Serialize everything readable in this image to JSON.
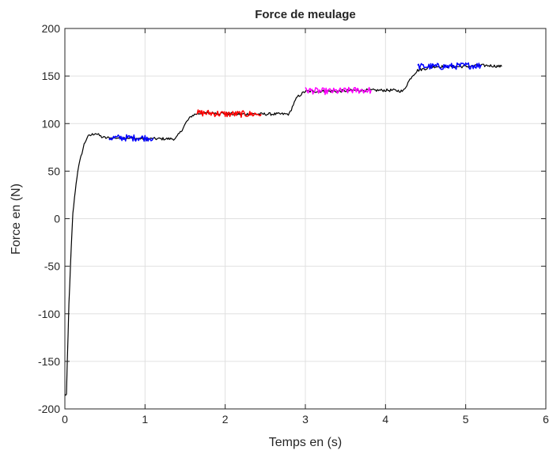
{
  "chart_data": {
    "type": "line",
    "title": "Force de meulage",
    "xlabel": "Temps en (s)",
    "ylabel": "Force en (N)",
    "xlim": [
      0,
      6
    ],
    "ylim": [
      -200,
      200
    ],
    "xticks": [
      0,
      1,
      2,
      3,
      4,
      5,
      6
    ],
    "yticks": [
      -200,
      -150,
      -100,
      -50,
      0,
      50,
      100,
      150,
      200
    ],
    "xtick_labels": [
      "0",
      "1",
      "2",
      "3",
      "4",
      "5",
      "6"
    ],
    "ytick_labels": [
      "-200",
      "-150",
      "-100",
      "-50",
      "0",
      "50",
      "100",
      "150",
      "200"
    ],
    "grid": true,
    "legend": "none",
    "colors": {
      "base": "#000000",
      "segment1": "#0000ff",
      "segment2": "#ff0000",
      "segment3": "#ff00ff",
      "segment4": "#0000ff",
      "grid": "#e0e0e0",
      "axes": "#262626"
    },
    "series": [
      {
        "color": "#000000",
        "noise": 1.5,
        "x": [
          0.0,
          0.02,
          0.05,
          0.08,
          0.1,
          0.13,
          0.16,
          0.2,
          0.24,
          0.28,
          0.33,
          0.38,
          0.42,
          0.46,
          0.5,
          0.6,
          0.8,
          1.0,
          1.2,
          1.38,
          1.45,
          1.52,
          1.58,
          1.63,
          1.7,
          1.9,
          2.1,
          2.3,
          2.5,
          2.7,
          2.8,
          2.85,
          2.9,
          2.95,
          3.0,
          3.2,
          3.4,
          3.6,
          3.8,
          3.9,
          4.1,
          4.22,
          4.28,
          4.33,
          4.4,
          4.6,
          4.8,
          5.0,
          5.2,
          5.3,
          5.45
        ],
        "y": [
          -185,
          -185,
          -90,
          -30,
          5,
          30,
          50,
          65,
          78,
          86,
          88,
          90,
          88,
          86,
          85,
          85,
          85,
          84,
          84,
          84,
          92,
          102,
          108,
          110,
          111,
          111,
          110,
          110,
          110,
          110,
          110,
          120,
          128,
          131,
          134,
          134,
          134,
          135,
          135,
          135,
          135,
          134,
          143,
          150,
          156,
          160,
          160,
          160,
          161,
          161,
          160
        ]
      },
      {
        "color": "#0000ff",
        "noise": 3.5,
        "x": [
          0.55,
          0.7,
          0.85,
          1.0,
          1.1
        ],
        "y": [
          85,
          85,
          85,
          85,
          85
        ]
      },
      {
        "color": "#ff0000",
        "noise": 3.5,
        "x": [
          1.65,
          1.8,
          2.0,
          2.2,
          2.45
        ],
        "y": [
          111,
          111,
          110,
          110,
          110
        ]
      },
      {
        "color": "#ff00ff",
        "noise": 3.5,
        "x": [
          3.0,
          3.2,
          3.4,
          3.6,
          3.82
        ],
        "y": [
          135,
          134,
          134,
          135,
          135
        ]
      },
      {
        "color": "#0000ff",
        "noise": 3.5,
        "x": [
          4.4,
          4.6,
          4.8,
          5.0,
          5.2
        ],
        "y": [
          160,
          160,
          160,
          161,
          161
        ]
      }
    ]
  }
}
